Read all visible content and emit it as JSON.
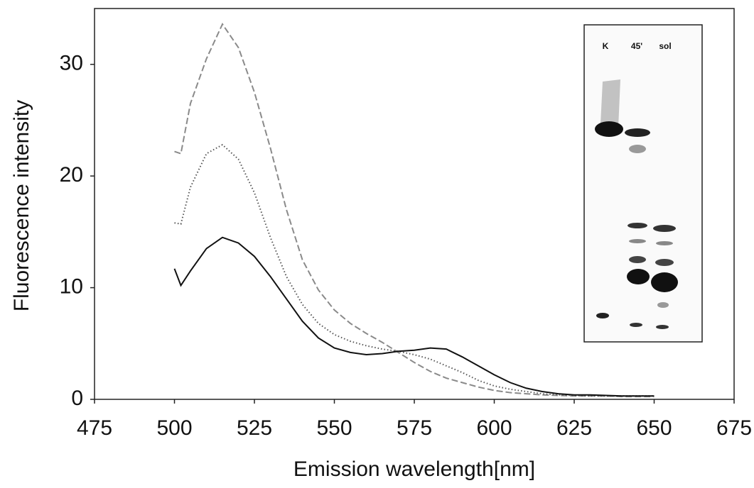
{
  "chart_data": {
    "type": "line",
    "x_label": "Emission wavelength[nm]",
    "y_label": "Fluorescence intensity",
    "x": [
      500,
      502,
      505,
      510,
      515,
      520,
      525,
      530,
      535,
      540,
      545,
      550,
      555,
      560,
      565,
      570,
      575,
      580,
      585,
      590,
      595,
      600,
      605,
      610,
      615,
      620,
      625,
      630,
      635,
      640,
      645,
      650
    ],
    "series": [
      {
        "color": "#8a8a8a",
        "dash": "9 4",
        "values": [
          22.2,
          22.0,
          26.5,
          30.5,
          33.6,
          31.5,
          27.5,
          22.5,
          17,
          12.5,
          9.8,
          8,
          6.8,
          5.9,
          5.1,
          4.2,
          3.3,
          2.5,
          1.9,
          1.5,
          1.1,
          0.8,
          0.6,
          0.5,
          0.4,
          0.35,
          0.3,
          0.3,
          0.3,
          0.25,
          0.25,
          0.25
        ]
      },
      {
        "color": "#555555",
        "dash": "1.5 3",
        "values": [
          15.8,
          15.7,
          19,
          22,
          22.8,
          21.5,
          18.5,
          14.5,
          11,
          8.5,
          6.8,
          5.8,
          5.2,
          4.8,
          4.5,
          4.3,
          4.0,
          3.6,
          3.0,
          2.4,
          1.7,
          1.2,
          0.9,
          0.7,
          0.5,
          0.4,
          0.35,
          0.3,
          0.3,
          0.3,
          0.3,
          0.3
        ]
      },
      {
        "color": "#111111",
        "dash": "none",
        "values": [
          11.7,
          10.2,
          11.5,
          13.5,
          14.5,
          14,
          12.8,
          11,
          9,
          7,
          5.5,
          4.6,
          4.2,
          4.0,
          4.1,
          4.3,
          4.4,
          4.6,
          4.5,
          3.8,
          3,
          2.2,
          1.5,
          1.0,
          0.7,
          0.5,
          0.4,
          0.4,
          0.35,
          0.3,
          0.3,
          0.3
        ]
      }
    ],
    "xlim": [
      475,
      675
    ],
    "xticks": [
      475,
      500,
      525,
      550,
      575,
      600,
      625,
      650,
      675
    ],
    "ylim": [
      0,
      35
    ],
    "yticks": [
      0,
      10,
      20,
      30
    ],
    "inset_labels": [
      "K",
      "45'",
      "sol"
    ]
  }
}
